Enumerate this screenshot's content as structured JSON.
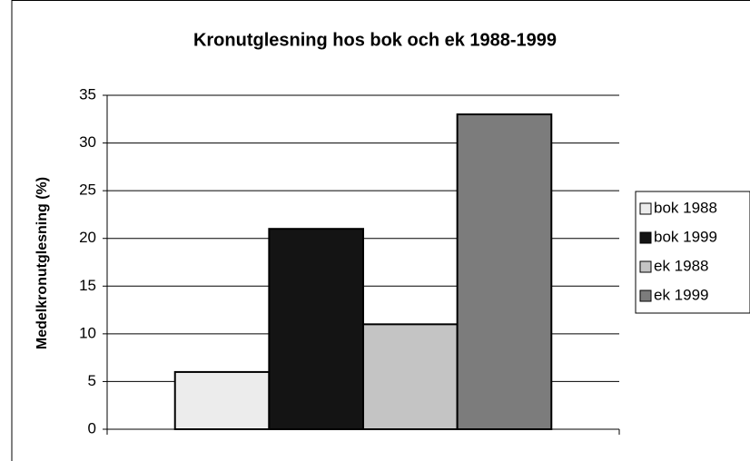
{
  "chart_data": {
    "type": "bar",
    "title": "Kronutglesning hos bok och ek 1988-1999",
    "y_label": "Medelkronutglesning (%)",
    "categories": [
      null
    ],
    "series": [
      {
        "name": "bok 1988",
        "color": "#ececec",
        "values": [
          6
        ]
      },
      {
        "name": "bok 1999",
        "color": "#141414",
        "values": [
          21
        ]
      },
      {
        "name": "ek 1988",
        "color": "#c4c4c4",
        "values": [
          11
        ]
      },
      {
        "name": "ek 1999",
        "color": "#7c7c7c",
        "values": [
          33
        ]
      }
    ],
    "ylim": [
      0,
      35
    ],
    "yticks": [
      0,
      5,
      10,
      15,
      20,
      25,
      30,
      35
    ],
    "grid": true,
    "legend": "right"
  }
}
